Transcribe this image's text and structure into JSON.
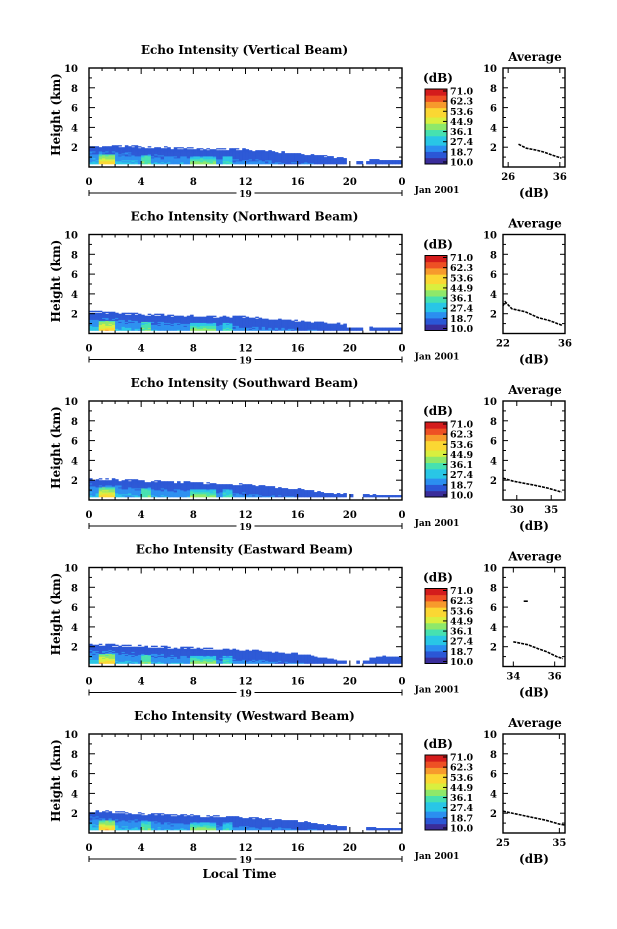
{
  "figure": {
    "xlabel": "Local Time",
    "date_label": "Jan 2001",
    "day_label": "19",
    "colorbar_unit": "(dB)",
    "average_title": "Average",
    "average_xlabel": "(dB)",
    "colorbar_ticks": [
      "71.0",
      "62.3",
      "53.6",
      "44.9",
      "36.1",
      "27.4",
      "18.7",
      "10.0"
    ],
    "colormap": [
      "#3a2d9a",
      "#2b57d6",
      "#2b8ff0",
      "#29c6e6",
      "#46e1b0",
      "#8ee86a",
      "#d9ef3f",
      "#fbd733",
      "#f79a2c",
      "#ee5024",
      "#d41c1c"
    ]
  },
  "chart_data": [
    {
      "type": "heatmap",
      "title": "Echo Intensity (Vertical Beam)",
      "xlabel": "Local Time",
      "ylabel": "Height (km)",
      "xlim": [
        0,
        24
      ],
      "ylim": [
        0,
        10
      ],
      "x_ticks": [
        "0",
        "4",
        "8",
        "12",
        "16",
        "20",
        "0"
      ],
      "y_ticks": [
        "2",
        "4",
        "6",
        "8",
        "10"
      ],
      "colorbar": {
        "label": "(dB)",
        "min": 10.0,
        "max": 71.0
      },
      "echo_top_km": [
        [
          0,
          2.2
        ],
        [
          4,
          2.1
        ],
        [
          8,
          1.9
        ],
        [
          12,
          1.8
        ],
        [
          16,
          1.4
        ],
        [
          20,
          0.8
        ],
        [
          22.5,
          0.7
        ]
      ],
      "average_profile": {
        "title": "Average",
        "xlabel": "(dB)",
        "xlim": [
          25,
          37
        ],
        "x_ticks": [
          "26",
          "36"
        ],
        "y_ticks": [
          "2",
          "4",
          "6",
          "8",
          "10"
        ],
        "points": [
          [
            28.0,
            2.3
          ],
          [
            29.5,
            1.9
          ],
          [
            31.5,
            1.7
          ],
          [
            33.0,
            1.5
          ],
          [
            34.5,
            1.2
          ],
          [
            36.3,
            0.9
          ]
        ]
      }
    },
    {
      "type": "heatmap",
      "title": "Echo Intensity (Northward Beam)",
      "xlabel": "Local Time",
      "ylabel": "Height (km)",
      "xlim": [
        0,
        24
      ],
      "ylim": [
        0,
        10
      ],
      "x_ticks": [
        "0",
        "4",
        "8",
        "12",
        "16",
        "20",
        "0"
      ],
      "y_ticks": [
        "2",
        "4",
        "6",
        "8",
        "10"
      ],
      "colorbar": {
        "label": "(dB)",
        "min": 10.0,
        "max": 71.0
      },
      "echo_top_km": [
        [
          0,
          2.3
        ],
        [
          4,
          2.0
        ],
        [
          8,
          1.8
        ],
        [
          12,
          1.7
        ],
        [
          16,
          1.3
        ],
        [
          20,
          0.9
        ],
        [
          22,
          0.6
        ]
      ],
      "average_profile": {
        "title": "Average",
        "xlabel": "(dB)",
        "xlim": [
          22,
          36
        ],
        "x_ticks": [
          "22",
          "36"
        ],
        "y_ticks": [
          "2",
          "4",
          "6",
          "8",
          "10"
        ],
        "points": [
          [
            22.0,
            2.8
          ],
          [
            22.5,
            3.2
          ],
          [
            24.0,
            2.5
          ],
          [
            27.0,
            2.2
          ],
          [
            30.0,
            1.6
          ],
          [
            32.5,
            1.3
          ],
          [
            35.5,
            0.8
          ]
        ]
      }
    },
    {
      "type": "heatmap",
      "title": "Echo Intensity (Southward Beam)",
      "xlabel": "Local Time",
      "ylabel": "Height (km)",
      "xlim": [
        0,
        24
      ],
      "ylim": [
        0,
        10
      ],
      "x_ticks": [
        "0",
        "4",
        "8",
        "12",
        "16",
        "20",
        "0"
      ],
      "y_ticks": [
        "2",
        "4",
        "6",
        "8",
        "10"
      ],
      "colorbar": {
        "label": "(dB)",
        "min": 10.0,
        "max": 71.0
      },
      "echo_top_km": [
        [
          0,
          2.2
        ],
        [
          4,
          2.0
        ],
        [
          8,
          1.8
        ],
        [
          12,
          1.6
        ],
        [
          16,
          1.1
        ],
        [
          18,
          0.7
        ],
        [
          22,
          0.5
        ]
      ],
      "average_profile": {
        "title": "Average",
        "xlabel": "(dB)",
        "xlim": [
          28,
          37
        ],
        "x_ticks": [
          "30",
          "35"
        ],
        "y_ticks": [
          "2",
          "4",
          "6",
          "8",
          "10"
        ],
        "points": [
          [
            28.0,
            2.2
          ],
          [
            29.5,
            1.9
          ],
          [
            31.0,
            1.7
          ],
          [
            32.5,
            1.5
          ],
          [
            34.5,
            1.2
          ],
          [
            36.5,
            0.8
          ]
        ]
      }
    },
    {
      "type": "heatmap",
      "title": "Echo Intensity (Eastward Beam)",
      "xlabel": "Local Time",
      "ylabel": "Height (km)",
      "xlim": [
        0,
        24
      ],
      "ylim": [
        0,
        10
      ],
      "x_ticks": [
        "0",
        "4",
        "8",
        "12",
        "16",
        "20",
        "0"
      ],
      "y_ticks": [
        "2",
        "4",
        "6",
        "8",
        "10"
      ],
      "colorbar": {
        "label": "(dB)",
        "min": 10.0,
        "max": 71.0
      },
      "echo_top_km": [
        [
          0,
          2.3
        ],
        [
          4,
          2.1
        ],
        [
          8,
          1.9
        ],
        [
          12,
          1.7
        ],
        [
          16,
          1.3
        ],
        [
          19,
          0.6
        ],
        [
          22.5,
          1.0
        ]
      ],
      "average_profile": {
        "title": "Average",
        "xlabel": "(dB)",
        "xlim": [
          33.5,
          36.5
        ],
        "x_ticks": [
          "34",
          "36"
        ],
        "y_ticks": [
          "2",
          "4",
          "6",
          "8",
          "10"
        ],
        "points": [
          [
            34.0,
            2.5
          ],
          [
            34.7,
            2.2
          ],
          [
            35.2,
            1.8
          ],
          [
            35.6,
            1.5
          ],
          [
            36.1,
            1.0
          ],
          [
            36.4,
            0.8
          ]
        ],
        "outlier": [
          [
            34.5,
            6.6
          ],
          [
            34.7,
            6.6
          ]
        ]
      }
    },
    {
      "type": "heatmap",
      "title": "Echo Intensity (Westward Beam)",
      "xlabel": "Local Time",
      "ylabel": "Height (km)",
      "xlim": [
        0,
        24
      ],
      "ylim": [
        0,
        10
      ],
      "x_ticks": [
        "0",
        "4",
        "8",
        "12",
        "16",
        "20",
        "0"
      ],
      "y_ticks": [
        "2",
        "4",
        "6",
        "8",
        "10"
      ],
      "colorbar": {
        "label": "(dB)",
        "min": 10.0,
        "max": 71.0
      },
      "echo_top_km": [
        [
          0,
          2.3
        ],
        [
          4,
          2.0
        ],
        [
          8,
          1.8
        ],
        [
          12,
          1.6
        ],
        [
          16,
          1.2
        ],
        [
          19,
          0.7
        ],
        [
          22,
          0.5
        ]
      ],
      "average_profile": {
        "title": "Average",
        "xlabel": "(dB)",
        "xlim": [
          25,
          36
        ],
        "x_ticks": [
          "25",
          "35"
        ],
        "y_ticks": [
          "2",
          "4",
          "6",
          "8",
          "10"
        ],
        "points": [
          [
            25.0,
            2.2
          ],
          [
            27.5,
            1.9
          ],
          [
            30.0,
            1.6
          ],
          [
            32.5,
            1.3
          ],
          [
            35.0,
            0.9
          ],
          [
            36.0,
            0.8
          ]
        ]
      }
    }
  ]
}
